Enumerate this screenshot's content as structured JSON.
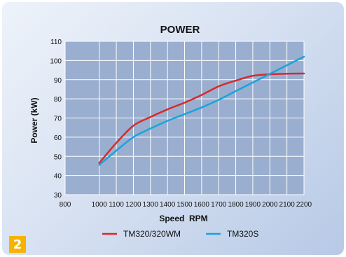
{
  "figure_number": "2",
  "colors": {
    "plot_background": "#9aaed0",
    "grid": "#ffffff",
    "series_tm320_wm": "#d52b2b",
    "series_tm320s": "#1aa3dd",
    "badge": "#f5b400"
  },
  "chart_data": {
    "type": "line",
    "title": "POWER",
    "xlabel": "Speed  RPM",
    "ylabel": "Power (kW)",
    "xlim": [
      800,
      2200
    ],
    "ylim": [
      30,
      110
    ],
    "xticks": [
      800,
      1000,
      1100,
      1200,
      1300,
      1400,
      1500,
      1600,
      1700,
      1800,
      1900,
      2000,
      2100,
      2200
    ],
    "yticks": [
      30,
      40,
      50,
      60,
      70,
      80,
      90,
      100,
      110
    ],
    "grid": true,
    "legend_position": "bottom",
    "series": [
      {
        "name": "TM320/320WM",
        "x": [
          1000,
          1100,
          1200,
          1300,
          1400,
          1500,
          1600,
          1700,
          1800,
          1900,
          2000,
          2100,
          2200
        ],
        "y": [
          46.5,
          57,
          66,
          70.5,
          74.5,
          78,
          82,
          86.5,
          89.5,
          92,
          92.8,
          93.1,
          93.2
        ]
      },
      {
        "name": "TM320S",
        "x": [
          1000,
          1100,
          1200,
          1300,
          1400,
          1500,
          1600,
          1700,
          1800,
          1900,
          2000,
          2100,
          2200
        ],
        "y": [
          45.5,
          53,
          60,
          64.5,
          68.5,
          72,
          75.5,
          79.5,
          84,
          88.5,
          93,
          97.5,
          102
        ]
      }
    ]
  }
}
